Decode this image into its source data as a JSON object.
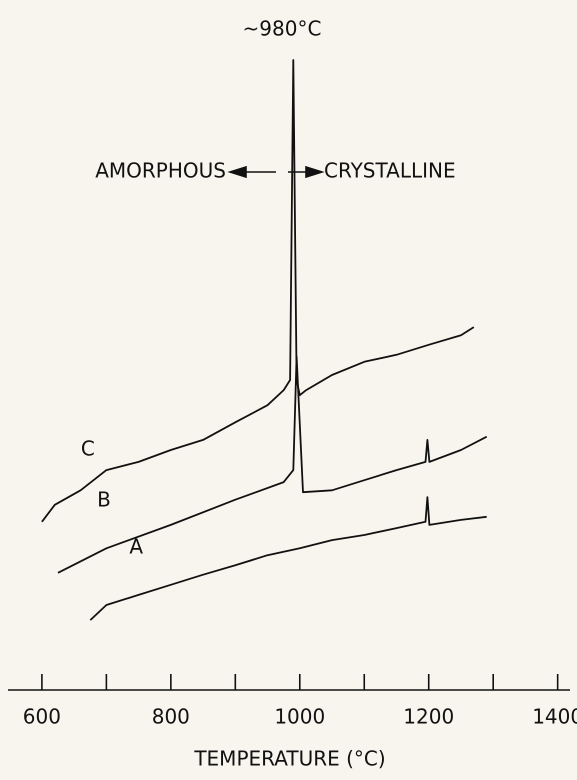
{
  "chart_data": {
    "type": "line",
    "x_label": "TEMPERATURE (°C)",
    "annotations": {
      "peak": "~980°C",
      "left": "AMORPHOUS",
      "right": "CRYSTALLINE"
    },
    "xlim": [
      535,
      1430
    ],
    "xticks": [
      600,
      800,
      1000,
      1200,
      1400
    ],
    "xticks_minor": [
      700,
      900,
      1100,
      1300
    ],
    "ylim": [
      0,
      100
    ],
    "color": "#111111",
    "series": [
      {
        "name": "C",
        "x": [
          600,
          620,
          660,
          700,
          750,
          800,
          850,
          900,
          950,
          975,
          985,
          990,
          995,
          1000,
          1010,
          1050,
          1100,
          1150,
          1200,
          1250,
          1270
        ],
        "values": [
          26.7,
          29.4,
          31.7,
          34.9,
          36.2,
          38.1,
          39.7,
          42.5,
          45.2,
          47.6,
          49.2,
          100,
          49.2,
          46.8,
          47.6,
          50,
          52.1,
          53.2,
          54.8,
          56.3,
          57.6
        ]
      },
      {
        "name": "B",
        "x": [
          625,
          700,
          800,
          900,
          975,
          990,
          995,
          1005,
          1050,
          1100,
          1150,
          1195,
          1198,
          1201,
          1250,
          1290
        ],
        "values": [
          18.6,
          22.5,
          26.2,
          30.2,
          33,
          34.9,
          52.9,
          31.4,
          31.7,
          33.3,
          34.9,
          36.2,
          39.7,
          36.2,
          38.1,
          40.2
        ]
      },
      {
        "name": "A",
        "x": [
          675,
          700,
          750,
          800,
          850,
          900,
          950,
          1000,
          1050,
          1100,
          1150,
          1195,
          1198,
          1201,
          1250,
          1290
        ],
        "values": [
          11.1,
          13.5,
          15.1,
          16.7,
          18.3,
          19.8,
          21.4,
          22.5,
          23.8,
          24.6,
          25.7,
          26.7,
          30.6,
          26.2,
          27,
          27.5
        ]
      }
    ]
  }
}
